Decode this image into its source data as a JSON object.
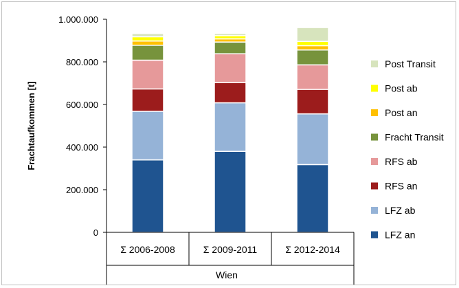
{
  "chart_data": {
    "type": "bar",
    "stacked": true,
    "ylabel": "Frachtaufkommen [t]",
    "group_label": "Wien",
    "categories": [
      "Σ 2006-2008",
      "Σ 2009-2011",
      "Σ 2012-2014"
    ],
    "ylim": [
      0,
      1000000
    ],
    "yticks": [
      {
        "value": 0,
        "label": "0"
      },
      {
        "value": 200000,
        "label": "200.000"
      },
      {
        "value": 400000,
        "label": "400.000"
      },
      {
        "value": 600000,
        "label": "600.000"
      },
      {
        "value": 800000,
        "label": "800.000"
      },
      {
        "value": 1000000,
        "label": "1.000.000"
      }
    ],
    "grid": false,
    "legend_position": "right",
    "series": [
      {
        "name": "LFZ an",
        "color": "#1f5490",
        "values": [
          340000,
          380000,
          318000
        ]
      },
      {
        "name": "LFZ ab",
        "color": "#95b3d7",
        "values": [
          228000,
          228000,
          238000
        ]
      },
      {
        "name": "RFS an",
        "color": "#9c1c1c",
        "values": [
          105000,
          95000,
          115000
        ]
      },
      {
        "name": "RFS ab",
        "color": "#e6999a",
        "values": [
          135000,
          135000,
          115000
        ]
      },
      {
        "name": "Fracht Transit",
        "color": "#77933c",
        "values": [
          70000,
          55000,
          70000
        ]
      },
      {
        "name": "Post an",
        "color": "#ffc000",
        "values": [
          20000,
          15000,
          20000
        ]
      },
      {
        "name": "Post ab",
        "color": "#ffff00",
        "values": [
          20000,
          15000,
          20000
        ]
      },
      {
        "name": "Post Transit",
        "color": "#d7e4bd",
        "values": [
          15000,
          10000,
          65000
        ]
      }
    ]
  }
}
